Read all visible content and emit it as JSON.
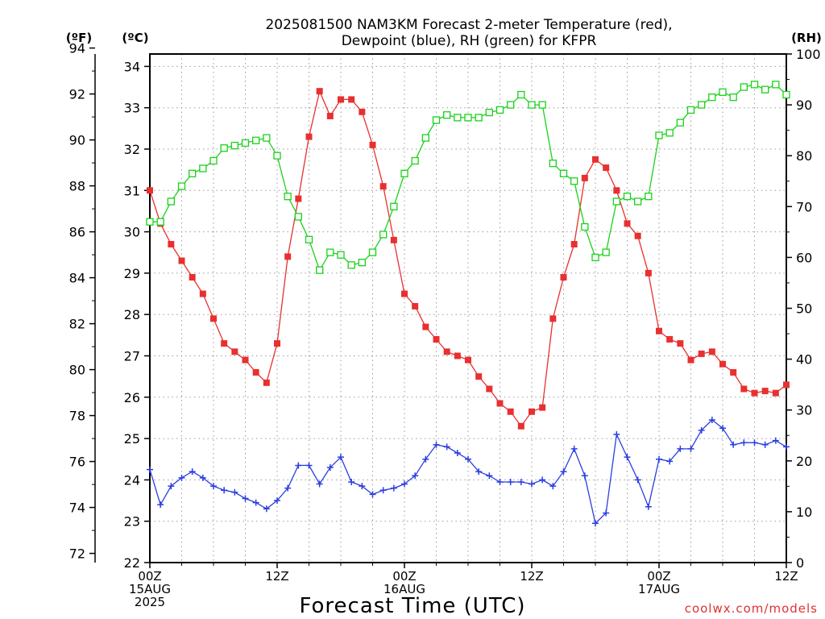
{
  "chart_data": {
    "type": "line",
    "title_line1": "2025081500 NAM3KM Forecast 2-meter Temperature (red),",
    "title_line2": "Dewpoint (blue), RH (green) for KFPR",
    "xlabel": "Forecast Time (UTC)",
    "credit": "coolwx.com/models",
    "unit_labels": {
      "f": "(ºF)",
      "c": "(ºC)",
      "rh": "(RH)"
    },
    "x_range_hours": [
      0,
      60
    ],
    "left_axis_c": {
      "range": [
        22,
        34.3
      ],
      "ticks": [
        22,
        23,
        24,
        25,
        26,
        27,
        28,
        29,
        30,
        31,
        32,
        33,
        34
      ]
    },
    "left_axis_f": {
      "range": [
        71.6,
        93.74
      ],
      "ticks": [
        72,
        74,
        76,
        78,
        80,
        82,
        84,
        86,
        88,
        90,
        92,
        94
      ]
    },
    "right_axis_rh": {
      "range": [
        0,
        100
      ],
      "ticks": [
        0,
        10,
        20,
        30,
        40,
        50,
        60,
        70,
        80,
        90,
        100
      ]
    },
    "x_ticks": [
      {
        "hour": 0,
        "lines": [
          "00Z",
          "15AUG",
          "2025"
        ]
      },
      {
        "hour": 12,
        "lines": [
          "12Z"
        ]
      },
      {
        "hour": 24,
        "lines": [
          "00Z",
          "16AUG"
        ]
      },
      {
        "hour": 36,
        "lines": [
          "12Z"
        ]
      },
      {
        "hour": 48,
        "lines": [
          "00Z",
          "17AUG"
        ]
      },
      {
        "hour": 60,
        "lines": [
          "12Z"
        ]
      }
    ],
    "grid": true,
    "series": [
      {
        "axis": "c",
        "color": "#e83030",
        "marker": "filled-square",
        "values": [
          [
            0,
            31.0
          ],
          [
            1,
            30.2
          ],
          [
            2,
            29.7
          ],
          [
            3,
            29.3
          ],
          [
            4,
            28.9
          ],
          [
            5,
            28.5
          ],
          [
            6,
            27.9
          ],
          [
            7,
            27.3
          ],
          [
            8,
            27.1
          ],
          [
            9,
            26.9
          ],
          [
            10,
            26.6
          ],
          [
            11,
            26.35
          ],
          [
            12,
            27.3
          ],
          [
            13,
            29.4
          ],
          [
            14,
            30.8
          ],
          [
            15,
            32.3
          ],
          [
            16,
            33.4
          ],
          [
            17,
            32.8
          ],
          [
            18,
            33.2
          ],
          [
            19,
            33.2
          ],
          [
            20,
            32.9
          ],
          [
            21,
            32.1
          ],
          [
            22,
            31.1
          ],
          [
            23,
            29.8
          ],
          [
            24,
            28.5
          ],
          [
            25,
            28.2
          ],
          [
            26,
            27.7
          ],
          [
            27,
            27.4
          ],
          [
            28,
            27.1
          ],
          [
            29,
            27.0
          ],
          [
            30,
            26.9
          ],
          [
            31,
            26.5
          ],
          [
            32,
            26.2
          ],
          [
            33,
            25.85
          ],
          [
            34,
            25.65
          ],
          [
            35,
            25.3
          ],
          [
            36,
            25.65
          ],
          [
            37,
            25.75
          ],
          [
            38,
            27.9
          ],
          [
            39,
            28.9
          ],
          [
            40,
            29.7
          ],
          [
            41,
            31.3
          ],
          [
            42,
            31.75
          ],
          [
            43,
            31.55
          ],
          [
            44,
            31.0
          ],
          [
            45,
            30.2
          ],
          [
            46,
            29.9
          ],
          [
            47,
            29.0
          ],
          [
            48,
            27.6
          ],
          [
            49,
            27.4
          ],
          [
            50,
            27.3
          ],
          [
            51,
            26.9
          ],
          [
            52,
            27.05
          ],
          [
            53,
            27.1
          ],
          [
            54,
            26.8
          ],
          [
            55,
            26.6
          ],
          [
            56,
            26.2
          ],
          [
            57,
            26.1
          ],
          [
            58,
            26.15
          ],
          [
            59,
            26.1
          ],
          [
            60,
            26.3
          ]
        ]
      },
      {
        "axis": "c",
        "color": "#2a3ee0",
        "marker": "plus",
        "values": [
          [
            0,
            24.25
          ],
          [
            1,
            23.4
          ],
          [
            2,
            23.85
          ],
          [
            3,
            24.05
          ],
          [
            4,
            24.2
          ],
          [
            5,
            24.05
          ],
          [
            6,
            23.85
          ],
          [
            7,
            23.75
          ],
          [
            8,
            23.7
          ],
          [
            9,
            23.55
          ],
          [
            10,
            23.45
          ],
          [
            11,
            23.3
          ],
          [
            12,
            23.5
          ],
          [
            13,
            23.8
          ],
          [
            14,
            24.35
          ],
          [
            15,
            24.35
          ],
          [
            16,
            23.9
          ],
          [
            17,
            24.3
          ],
          [
            18,
            24.55
          ],
          [
            19,
            23.95
          ],
          [
            20,
            23.85
          ],
          [
            21,
            23.65
          ],
          [
            22,
            23.75
          ],
          [
            23,
            23.8
          ],
          [
            24,
            23.9
          ],
          [
            25,
            24.1
          ],
          [
            26,
            24.5
          ],
          [
            27,
            24.85
          ],
          [
            28,
            24.8
          ],
          [
            29,
            24.65
          ],
          [
            30,
            24.5
          ],
          [
            31,
            24.2
          ],
          [
            32,
            24.1
          ],
          [
            33,
            23.95
          ],
          [
            34,
            23.95
          ],
          [
            35,
            23.95
          ],
          [
            36,
            23.9
          ],
          [
            37,
            24.0
          ],
          [
            38,
            23.85
          ],
          [
            39,
            24.2
          ],
          [
            40,
            24.75
          ],
          [
            41,
            24.1
          ],
          [
            42,
            22.95
          ],
          [
            43,
            23.2
          ],
          [
            44,
            25.1
          ],
          [
            45,
            24.55
          ],
          [
            46,
            24.0
          ],
          [
            47,
            23.35
          ],
          [
            48,
            24.5
          ],
          [
            49,
            24.45
          ],
          [
            50,
            24.75
          ],
          [
            51,
            24.75
          ],
          [
            52,
            25.2
          ],
          [
            53,
            25.45
          ],
          [
            54,
            25.25
          ],
          [
            55,
            24.85
          ],
          [
            56,
            24.9
          ],
          [
            57,
            24.9
          ],
          [
            58,
            24.85
          ],
          [
            59,
            24.95
          ],
          [
            60,
            24.8
          ]
        ]
      },
      {
        "axis": "rh",
        "color": "#1ad21a",
        "marker": "open-square",
        "values": [
          [
            0,
            67
          ],
          [
            1,
            67
          ],
          [
            2,
            71
          ],
          [
            3,
            74
          ],
          [
            4,
            76.5
          ],
          [
            5,
            77.5
          ],
          [
            6,
            79
          ],
          [
            7,
            81.5
          ],
          [
            8,
            82
          ],
          [
            9,
            82.5
          ],
          [
            10,
            83
          ],
          [
            11,
            83.5
          ],
          [
            12,
            80
          ],
          [
            13,
            72
          ],
          [
            14,
            68
          ],
          [
            15,
            63.5
          ],
          [
            16,
            57.5
          ],
          [
            17,
            61
          ],
          [
            18,
            60.5
          ],
          [
            19,
            58.5
          ],
          [
            20,
            59
          ],
          [
            21,
            61
          ],
          [
            22,
            64.5
          ],
          [
            23,
            70
          ],
          [
            24,
            76.5
          ],
          [
            25,
            79
          ],
          [
            26,
            83.5
          ],
          [
            27,
            87
          ],
          [
            28,
            88
          ],
          [
            29,
            87.5
          ],
          [
            30,
            87.5
          ],
          [
            31,
            87.5
          ],
          [
            32,
            88.5
          ],
          [
            33,
            89
          ],
          [
            34,
            90
          ],
          [
            35,
            92
          ],
          [
            36,
            90
          ],
          [
            37,
            90
          ],
          [
            38,
            78.5
          ],
          [
            39,
            76.5
          ],
          [
            40,
            75
          ],
          [
            41,
            66
          ],
          [
            42,
            60
          ],
          [
            43,
            61
          ],
          [
            44,
            71
          ],
          [
            45,
            72
          ],
          [
            46,
            71
          ],
          [
            47,
            72
          ],
          [
            48,
            84
          ],
          [
            49,
            84.5
          ],
          [
            50,
            86.5
          ],
          [
            51,
            89
          ],
          [
            52,
            90
          ],
          [
            53,
            91.5
          ],
          [
            54,
            92.5
          ],
          [
            55,
            91.5
          ],
          [
            56,
            93.5
          ],
          [
            57,
            94
          ],
          [
            58,
            93
          ],
          [
            59,
            94
          ],
          [
            60,
            92
          ]
        ]
      }
    ]
  }
}
